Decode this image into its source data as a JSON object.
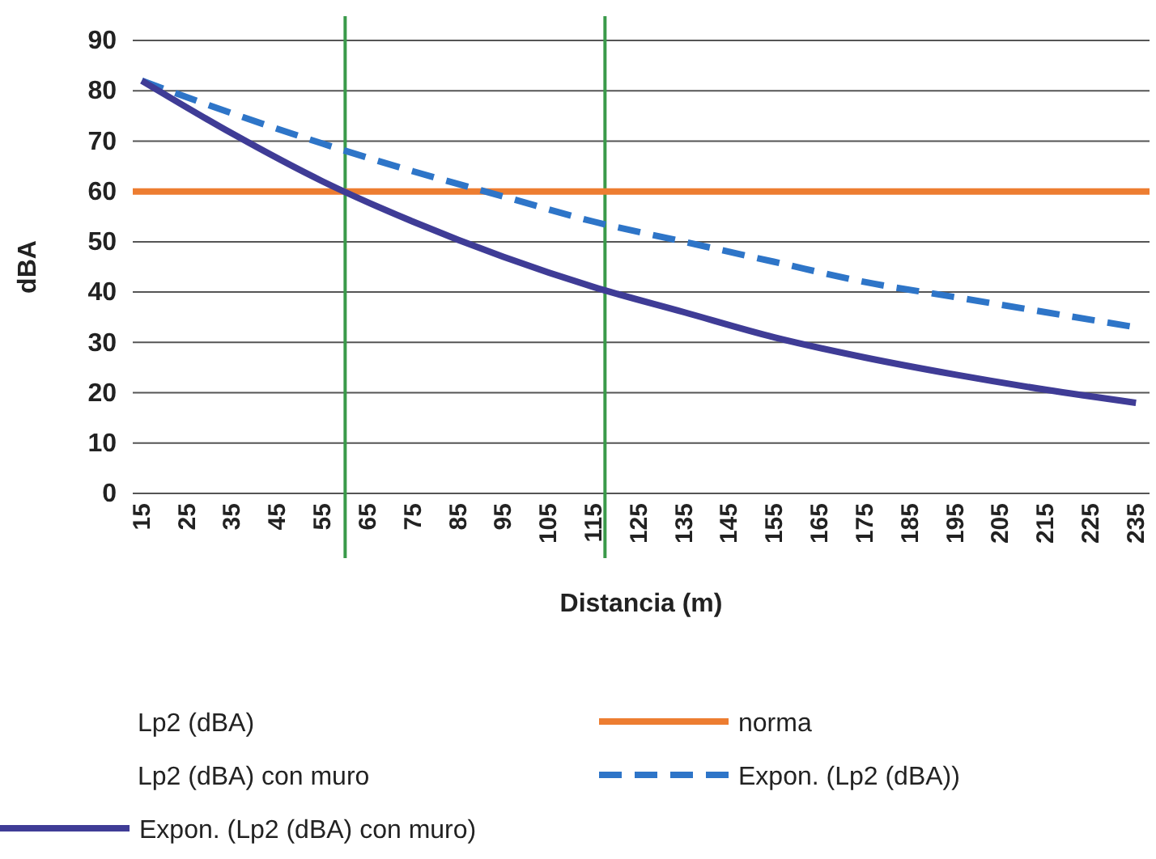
{
  "chart_data": {
    "type": "line",
    "xlabel": "Distancia (m)",
    "ylabel": "dBA",
    "xlim": [
      13,
      238
    ],
    "xticks": [
      15,
      25,
      35,
      45,
      55,
      65,
      75,
      85,
      95,
      105,
      115,
      125,
      135,
      145,
      155,
      165,
      175,
      185,
      195,
      205,
      215,
      225,
      235
    ],
    "ylim": [
      0,
      90
    ],
    "yticks": [
      0,
      10,
      20,
      30,
      40,
      50,
      60,
      70,
      80,
      90
    ],
    "grid": "y",
    "legend": "bottom",
    "marker": "none",
    "series": [
      {
        "name": "norma",
        "color": "#ed7d31",
        "x": [
          13,
          238
        ],
        "values": [
          60,
          60
        ]
      },
      {
        "name": "Expon. (Lp2 (dBA))",
        "color": "#2e75c8",
        "line_style": "dashed",
        "x": [
          15,
          35,
          55,
          75,
          95,
          115,
          135,
          155,
          175,
          195,
          215,
          235
        ],
        "values": [
          82,
          75.5,
          69.5,
          64,
          59,
          54,
          50,
          46,
          42,
          39,
          36,
          33
        ]
      },
      {
        "name": "Expon. (Lp2 (dBA) con muro)",
        "color": "#3f3c96",
        "x": [
          15,
          35,
          55,
          75,
          95,
          115,
          135,
          155,
          175,
          195,
          215,
          235
        ],
        "values": [
          82,
          71.5,
          62,
          54,
          47,
          41,
          36,
          31,
          27,
          23.6,
          20.6,
          18
        ]
      }
    ],
    "ref_lines": [
      {
        "axis": "x",
        "value": 60,
        "color": "#3a9a4a"
      },
      {
        "axis": "x",
        "value": 117.5,
        "color": "#3a9a4a"
      }
    ],
    "annotations": [
      "Lp2 (dBA)",
      "Lp2 (dBA) con muro"
    ]
  }
}
